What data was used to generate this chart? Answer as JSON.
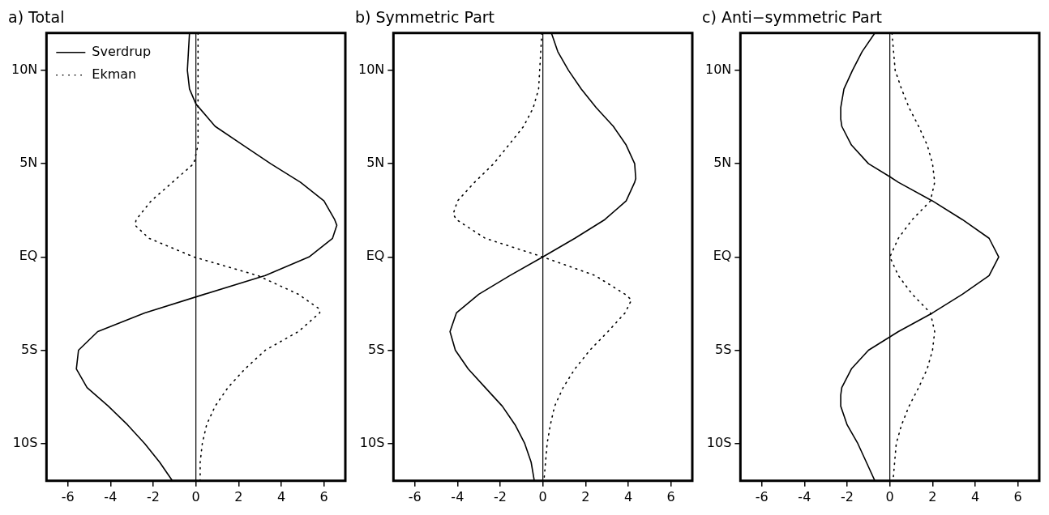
{
  "chart_data": [
    {
      "type": "line",
      "title": "a) Total",
      "legend": "top left",
      "grid": false,
      "marker": "none",
      "xlim": [
        -7,
        7
      ],
      "xticks": [
        -6,
        -4,
        -2,
        0,
        2,
        4,
        6
      ],
      "ylim": [
        -12,
        12
      ],
      "yticks": [
        {
          "value": -10,
          "label": "10S"
        },
        {
          "value": -5,
          "label": "5S"
        },
        {
          "value": 0,
          "label": "EQ"
        },
        {
          "value": 5,
          "label": "5N"
        },
        {
          "value": 10,
          "label": "10N"
        }
      ],
      "ref_lines": [
        {
          "axis": "x",
          "value": 0,
          "color": "#000000",
          "line_style": "solid"
        }
      ],
      "series": [
        {
          "name": "Sverdrup",
          "color": "#000000",
          "line_style": "solid",
          "x": [
            -0.3,
            -0.4,
            -0.3,
            0,
            0.9,
            2.2,
            3.5,
            4.9,
            6.0,
            6.5,
            6.6,
            6.4,
            5.3,
            3.25,
            0.4,
            -2.4,
            -4.6,
            -5.5,
            -5.6,
            -5.1,
            -4.1,
            -3.2,
            -2.4,
            -1.7,
            -1.1
          ],
          "values": [
            12,
            10,
            9,
            8.2,
            7,
            6,
            5,
            4,
            3,
            2,
            1.7,
            1,
            0,
            -1,
            -2,
            -3,
            -4,
            -5,
            -6,
            -7,
            -8,
            -9,
            -10,
            -11,
            -12
          ]
        },
        {
          "name": "Ekman",
          "color": "#000000",
          "line_style": "dotted",
          "x": [
            0.1,
            0.1,
            0.1,
            0.1,
            -0.1,
            -0.6,
            -1.1,
            -2.1,
            -2.8,
            -2.85,
            -2.2,
            -0.1,
            2.9,
            4.8,
            5.8,
            5.8,
            4.8,
            3.25,
            2.3,
            1.5,
            0.9,
            0.5,
            0.3,
            0.2,
            0.2
          ],
          "values": [
            12,
            10,
            8,
            6,
            5,
            4.5,
            4,
            3,
            2,
            1.7,
            1,
            0,
            -1,
            -2,
            -2.8,
            -3,
            -4,
            -5,
            -6,
            -7,
            -8,
            -9,
            -10,
            -11,
            -12
          ]
        }
      ]
    },
    {
      "type": "line",
      "title": "b) Symmetric Part",
      "grid": false,
      "marker": "none",
      "xlim": [
        -7,
        7
      ],
      "xticks": [
        -6,
        -4,
        -2,
        0,
        2,
        4,
        6
      ],
      "ylim": [
        -12,
        12
      ],
      "yticks": [
        {
          "value": -10,
          "label": "10S"
        },
        {
          "value": -5,
          "label": "5S"
        },
        {
          "value": 0,
          "label": "EQ"
        },
        {
          "value": 5,
          "label": "5N"
        },
        {
          "value": 10,
          "label": "10N"
        }
      ],
      "ref_lines": [
        {
          "axis": "x",
          "value": 0,
          "color": "#000000",
          "line_style": "solid"
        }
      ],
      "series": [
        {
          "color": "#000000",
          "line_style": "solid",
          "x": [
            0.4,
            0.7,
            1.2,
            1.8,
            2.5,
            3.3,
            3.9,
            4.3,
            4.35,
            4.3,
            3.9,
            2.9,
            1.5,
            0,
            -1.55,
            -3.0,
            -4.05,
            -4.35,
            -4.1,
            -3.5,
            -2.7,
            -1.9,
            -1.3,
            -0.85,
            -0.55,
            -0.4
          ],
          "values": [
            12,
            11,
            10,
            9,
            8,
            7,
            6,
            5,
            4.2,
            4,
            3,
            2,
            1,
            0,
            -1,
            -2,
            -3,
            -4,
            -5,
            -6,
            -7,
            -8,
            -9,
            -10,
            -11,
            -12
          ]
        },
        {
          "color": "#000000",
          "line_style": "dotted",
          "x": [
            -0.05,
            -0.15,
            -0.2,
            -0.45,
            -0.9,
            -1.6,
            -2.3,
            -3.2,
            -4.0,
            -4.2,
            -4.05,
            -2.7,
            0,
            2.45,
            3.85,
            4.15,
            3.85,
            3.05,
            2.2,
            1.5,
            0.95,
            0.55,
            0.35,
            0.2,
            0.05
          ],
          "values": [
            12,
            10,
            9,
            8,
            7,
            6,
            5,
            4,
            3,
            2.3,
            2,
            1,
            0,
            -1,
            -2,
            -2.3,
            -3,
            -4,
            -5,
            -6,
            -7,
            -8,
            -9,
            -10,
            -12
          ]
        }
      ]
    },
    {
      "type": "line",
      "title": "c) Anti−symmetric Part",
      "grid": false,
      "marker": "none",
      "xlim": [
        -7,
        7
      ],
      "xticks": [
        -6,
        -4,
        -2,
        0,
        2,
        4,
        6
      ],
      "ylim": [
        -12,
        12
      ],
      "yticks": [
        {
          "value": -10,
          "label": "10S"
        },
        {
          "value": -5,
          "label": "5S"
        },
        {
          "value": 0,
          "label": "EQ"
        },
        {
          "value": 5,
          "label": "5N"
        },
        {
          "value": 10,
          "label": "10N"
        }
      ],
      "ref_lines": [
        {
          "axis": "x",
          "value": 0,
          "color": "#000000",
          "line_style": "solid"
        }
      ],
      "series": [
        {
          "color": "#000000",
          "line_style": "solid",
          "x": [
            -0.7,
            -1.3,
            -1.75,
            -2.15,
            -2.3,
            -2.3,
            -2.25,
            -1.8,
            -1.0,
            0,
            0.4,
            2.0,
            3.4,
            4.65,
            5.1,
            4.65,
            3.4,
            2.0,
            0.4,
            -1.0,
            -1.8,
            -2.25,
            -2.3,
            -2.3,
            -2.0,
            -1.5,
            -1.1,
            -0.7
          ],
          "values": [
            12,
            11,
            10,
            9,
            8,
            7.4,
            7,
            6,
            5,
            4.3,
            4,
            3,
            2,
            1,
            0,
            -1,
            -2,
            -3,
            -4,
            -5,
            -6,
            -7,
            -7.4,
            -8,
            -9,
            -10,
            -11,
            -12
          ]
        },
        {
          "color": "#000000",
          "line_style": "dotted",
          "x": [
            0.1,
            0.25,
            0.55,
            0.9,
            1.35,
            1.75,
            2.0,
            2.1,
            1.9,
            1.05,
            0.4,
            0,
            0.4,
            1.05,
            1.9,
            2.1,
            2.0,
            1.75,
            1.35,
            0.9,
            0.55,
            0.3,
            0.15
          ],
          "values": [
            12,
            10,
            9,
            8,
            7,
            6,
            5,
            4,
            3,
            2,
            1,
            0,
            -1,
            -2,
            -3,
            -4,
            -5,
            -6,
            -7,
            -8,
            -9,
            -10,
            -12
          ]
        }
      ]
    }
  ]
}
